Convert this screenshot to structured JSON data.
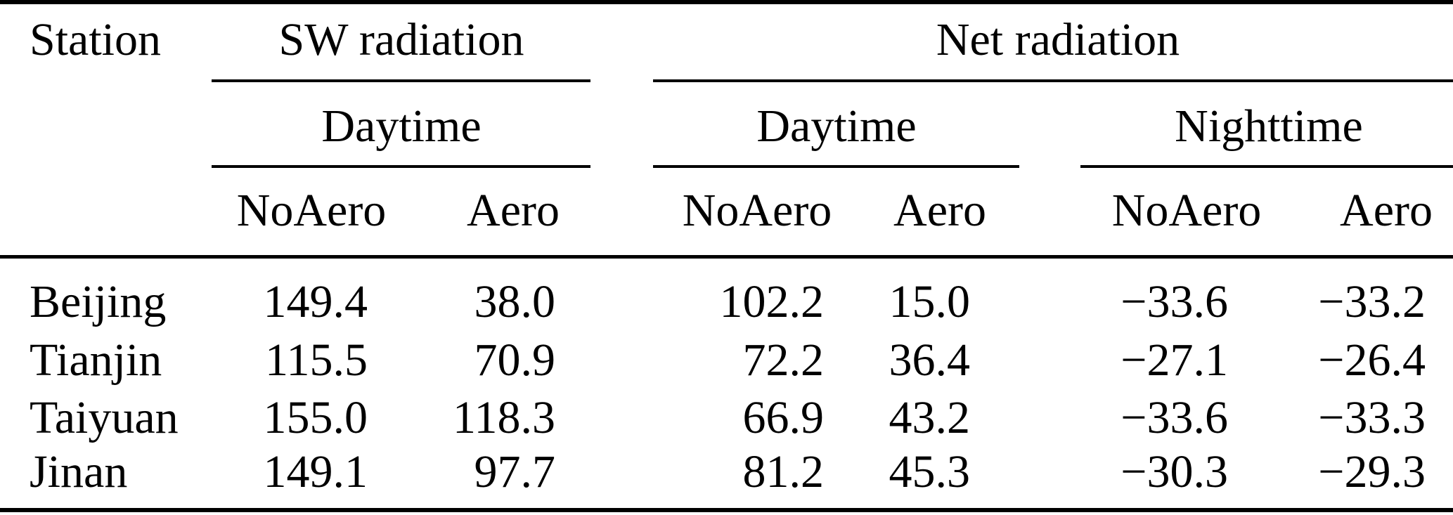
{
  "table": {
    "station_header": "Station",
    "groups": {
      "sw": "SW radiation",
      "net": "Net radiation"
    },
    "subgroups": {
      "sw_daytime": "Daytime",
      "net_daytime": "Daytime",
      "net_nighttime": "Nighttime"
    },
    "col_headers": [
      "NoAero",
      "Aero",
      "NoAero",
      "Aero",
      "NoAero",
      "Aero"
    ],
    "rows": [
      {
        "station": "Beijing",
        "values": [
          "149.4",
          "38.0",
          "102.2",
          "15.0",
          "−33.6",
          "−33.2"
        ]
      },
      {
        "station": "Tianjin",
        "values": [
          "115.5",
          "70.9",
          "72.2",
          "36.4",
          "−27.1",
          "−26.4"
        ]
      },
      {
        "station": "Taiyuan",
        "values": [
          "155.0",
          "118.3",
          "66.9",
          "43.2",
          "−33.6",
          "−33.3"
        ]
      },
      {
        "station": "Jinan",
        "values": [
          "149.1",
          "97.7",
          "81.2",
          "45.3",
          "−30.3",
          "−29.3"
        ]
      }
    ],
    "colors": {
      "text": "#000000",
      "background": "#ffffff",
      "rule": "#000000"
    }
  },
  "chart_data": {
    "type": "table",
    "title": "",
    "column_groups": [
      "SW radiation / Daytime",
      "Net radiation / Daytime",
      "Net radiation / Nighttime"
    ],
    "columns": [
      "Station",
      "SW Daytime NoAero",
      "SW Daytime Aero",
      "Net Daytime NoAero",
      "Net Daytime Aero",
      "Net Nighttime NoAero",
      "Net Nighttime Aero"
    ],
    "rows": [
      [
        "Beijing",
        149.4,
        38.0,
        102.2,
        15.0,
        -33.6,
        -33.2
      ],
      [
        "Tianjin",
        115.5,
        70.9,
        72.2,
        36.4,
        -27.1,
        -26.4
      ],
      [
        "Taiyuan",
        155.0,
        118.3,
        66.9,
        43.2,
        -33.6,
        -33.3
      ],
      [
        "Jinan",
        149.1,
        97.7,
        81.2,
        45.3,
        -30.3,
        -29.3
      ]
    ]
  }
}
